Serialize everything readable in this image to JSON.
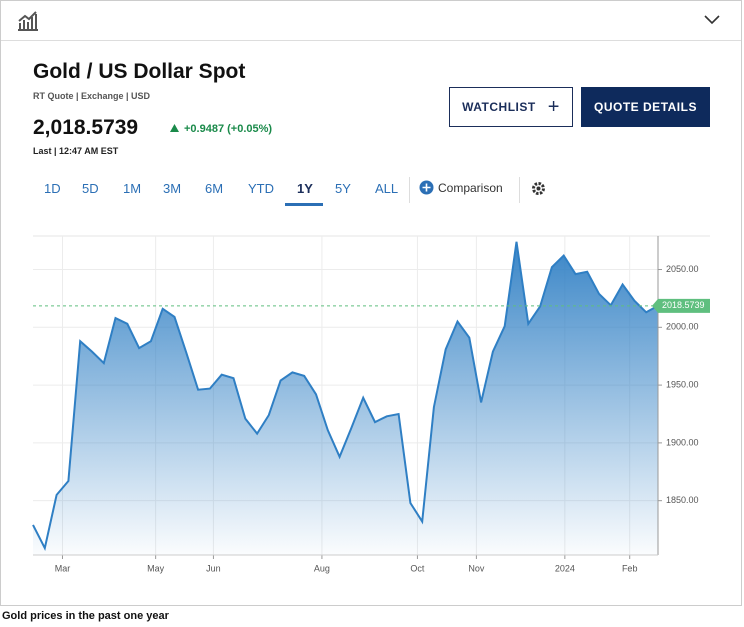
{
  "header": {
    "title": "Gold / US Dollar Spot",
    "quote_source": "RT Quote | Exchange | USD",
    "price": "2,018.5739",
    "change": "+0.9487 (+0.05%)",
    "last_time": "Last | 12:47 AM EST"
  },
  "buttons": {
    "watchlist": "WATCHLIST",
    "quote_details": "QUOTE DETAILS"
  },
  "ranges": {
    "items": [
      "1D",
      "5D",
      "1M",
      "3M",
      "6M",
      "YTD",
      "1Y",
      "5Y",
      "ALL"
    ],
    "active": "1Y",
    "comparison": "Comparison"
  },
  "caption": "Gold prices in the past one year",
  "chart_data": {
    "type": "area",
    "x": [
      0,
      1,
      2,
      3,
      4,
      5,
      6,
      7,
      8,
      9,
      10,
      11,
      12,
      13,
      14,
      15,
      16,
      17,
      18,
      19,
      20,
      21,
      22,
      23,
      24,
      25,
      26,
      27,
      28,
      29,
      30,
      31,
      32,
      33,
      34,
      35,
      36,
      37,
      38,
      39,
      40,
      41,
      42,
      43,
      44,
      45,
      46,
      47,
      48,
      49,
      50,
      51,
      52,
      53
    ],
    "series": [
      {
        "color": "#2f7fc4",
        "values": [
          1829,
          1809,
          1855,
          1867,
          1988,
          1979,
          1969,
          2008,
          2003,
          1982,
          1988,
          2016,
          2009,
          1978,
          1946,
          1947,
          1959,
          1956,
          1921,
          1908,
          1924,
          1954,
          1961,
          1958,
          1942,
          1911,
          1888,
          1913,
          1939,
          1918,
          1923,
          1925,
          1848,
          1832,
          1931,
          1981,
          2005,
          1991,
          1935,
          1979,
          2001,
          2074,
          2003,
          2018,
          2052,
          2062,
          2046,
          2048,
          2029,
          2019,
          2037,
          2023,
          2013,
          2018.5739
        ]
      }
    ],
    "last_value": {
      "value": 2018.5739,
      "label": "2018.5739",
      "color": "#5fbf7f"
    },
    "xlim": [
      0,
      53
    ],
    "xticks": [
      {
        "value": 2.5,
        "label": "Mar"
      },
      {
        "value": 10.4,
        "label": "May"
      },
      {
        "value": 15.3,
        "label": "Jun"
      },
      {
        "value": 24.5,
        "label": "Aug"
      },
      {
        "value": 32.6,
        "label": "Oct"
      },
      {
        "value": 37.6,
        "label": "Nov"
      },
      {
        "value": 45.1,
        "label": "2024"
      },
      {
        "value": 50.6,
        "label": "Feb"
      }
    ],
    "ylim": [
      1803,
      2079
    ],
    "yticks": [
      {
        "value": 1850,
        "label": "1850.00"
      },
      {
        "value": 1900,
        "label": "1900.00"
      },
      {
        "value": 1950,
        "label": "1950.00"
      },
      {
        "value": 2000,
        "label": "2000.00"
      },
      {
        "value": 2050,
        "label": "2050.00"
      }
    ],
    "grid": true
  }
}
